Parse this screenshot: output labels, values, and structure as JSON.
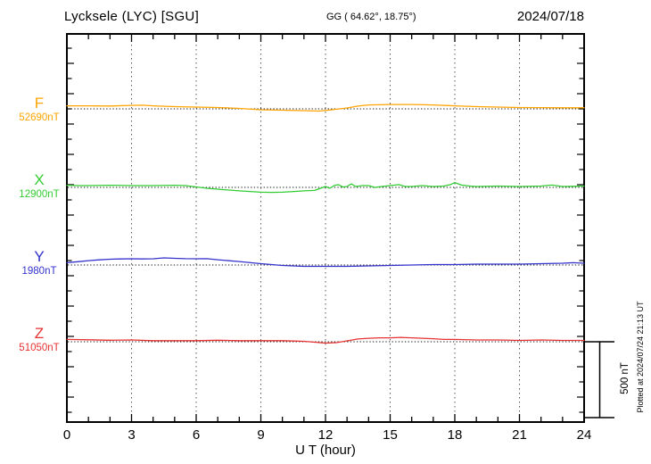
{
  "header": {
    "title": "Lycksele (LYC)  [SGU]",
    "coords": "GG ( 64.62°,  18.75°)",
    "date": "2024/07/18"
  },
  "footer": {
    "plotted_at": "Plotted at 2024/07/24 21:13 UT"
  },
  "chart_data": {
    "type": "line",
    "title": "Lycksele (LYC) [SGU] magnetogram",
    "date": "2024/07/18",
    "x_axis": {
      "label": "U T (hour)",
      "range": [
        0,
        24
      ],
      "ticks": [
        0,
        3,
        6,
        9,
        12,
        15,
        18,
        21,
        24
      ],
      "minor_tick_interval_hours": 1,
      "grid": "vertical dotted lines at 3-hour major ticks"
    },
    "y_axis": {
      "tick_interval_nT": 100,
      "baseline_separation_nT": 500,
      "baseline_style": "horizontal dotted line per component"
    },
    "scale_bar": {
      "label": "500 nT",
      "nT": 500
    },
    "series": [
      {
        "component": "F",
        "base_label": "52690nT",
        "base_value_nT": 52690,
        "color": "#ffa400",
        "x": [
          0,
          1,
          2,
          3,
          3.5,
          4,
          5,
          6,
          7,
          8,
          9,
          10,
          11,
          11.7,
          12.3,
          13,
          13.5,
          14,
          15,
          16,
          17,
          18,
          19,
          20,
          21,
          22,
          23,
          24
        ],
        "dev_nT": [
          20,
          20,
          19,
          23,
          24,
          20,
          15,
          12,
          9,
          3,
          -6,
          -9,
          -12,
          -15,
          -6,
          6,
          18,
          26,
          29,
          29,
          26,
          20,
          15,
          12,
          9,
          8,
          7,
          7
        ]
      },
      {
        "component": "X",
        "base_label": "12900nT",
        "base_value_nT": 12900,
        "color": "#33cc33",
        "x": [
          0,
          0.5,
          1,
          2,
          3,
          4,
          5,
          5.5,
          6,
          6.5,
          7,
          8,
          9,
          9.5,
          10,
          10.7,
          11,
          11.5,
          12,
          12.2,
          12.4,
          12.6,
          12.8,
          13,
          13.2,
          13.4,
          13.7,
          14,
          14.3,
          14.6,
          15,
          15.4,
          15.7,
          16,
          16.5,
          17,
          17.5,
          17.8,
          18,
          18.3,
          18.7,
          19,
          20,
          21,
          22,
          22.5,
          23,
          24
        ],
        "dev_nT": [
          14,
          12,
          12,
          14,
          12,
          12,
          14,
          12,
          3,
          -6,
          -12,
          -23,
          -32,
          -33,
          -32,
          -26,
          -23,
          -20,
          6,
          -6,
          12,
          18,
          3,
          6,
          23,
          6,
          12,
          12,
          0,
          6,
          12,
          18,
          6,
          6,
          12,
          6,
          9,
          18,
          32,
          15,
          9,
          6,
          9,
          6,
          9,
          15,
          6,
          9
        ]
      },
      {
        "component": "Y",
        "base_label": "1980nT",
        "base_value_nT": 1980,
        "color": "#3232cc",
        "x": [
          0,
          0.5,
          1,
          1.5,
          2,
          2.5,
          3,
          3.5,
          4,
          4.5,
          5,
          5.5,
          6,
          6.5,
          7,
          8,
          9,
          9.5,
          10,
          10.5,
          11,
          12,
          13,
          14,
          15,
          16,
          17,
          18,
          19,
          20,
          21,
          22,
          23,
          23.5,
          24
        ],
        "dev_nT": [
          15,
          22,
          29,
          34,
          38,
          40,
          41,
          40,
          41,
          47,
          44,
          42,
          41,
          42,
          35,
          23,
          9,
          3,
          -3,
          -6,
          -9,
          -9,
          -9,
          -6,
          -3,
          0,
          3,
          3,
          6,
          6,
          6,
          9,
          12,
          15,
          12
        ]
      },
      {
        "component": "Z",
        "base_label": "51050nT",
        "base_value_nT": 51050,
        "color": "#e63232",
        "x": [
          0,
          1,
          2,
          3,
          4,
          5,
          6,
          7,
          8,
          9,
          10,
          11,
          11.5,
          12,
          12.5,
          13,
          13.5,
          14,
          14.5,
          15,
          15.5,
          16,
          16.5,
          17,
          17.5,
          18,
          19,
          20,
          21,
          22,
          23,
          24
        ],
        "dev_nT": [
          15,
          13,
          10,
          12,
          7,
          7,
          7,
          10,
          7,
          7,
          7,
          3,
          -3,
          -9,
          -6,
          6,
          18,
          23,
          26,
          26,
          29,
          26,
          23,
          20,
          15,
          15,
          12,
          12,
          9,
          12,
          9,
          9
        ]
      }
    ]
  }
}
